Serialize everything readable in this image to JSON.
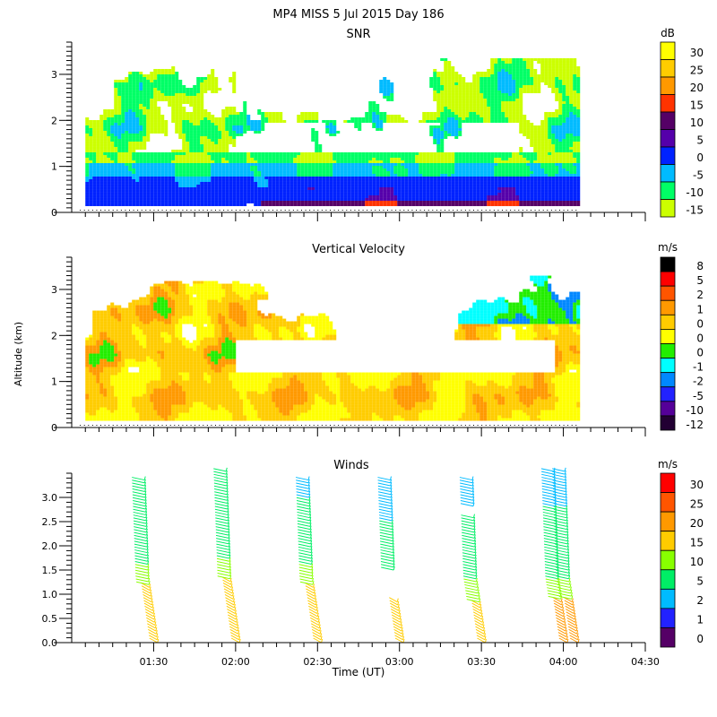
{
  "figure": {
    "title": "MP4 MISS   5 Jul 2015 Day 186",
    "ylabel": "Altitude (km)",
    "xlabel": "Time (UT)"
  },
  "chart_data": [
    {
      "type": "heatmap",
      "title": "SNR",
      "xlabel": "Time (UT)",
      "ylabel": "Altitude (km)",
      "xlim": [
        "01:00",
        "04:30"
      ],
      "ylim": [
        0,
        3.7
      ],
      "y_ticks": [
        "0",
        "1",
        "2",
        "3"
      ],
      "y_tick_values": [
        0,
        1,
        2,
        3
      ],
      "x_ticks": [
        "01:30",
        "02:00",
        "02:30",
        "03:00",
        "03:30",
        "04:00",
        "04:30"
      ],
      "data_time_range": [
        "01:05",
        "04:05"
      ],
      "colorbar": {
        "unit": "dB",
        "labels": [
          "30",
          "25",
          "20",
          "15",
          "10",
          "5",
          "0",
          "-5",
          "-10",
          "-15"
        ],
        "colors": [
          "#ffff00",
          "#ffcc00",
          "#ff9900",
          "#ff3300",
          "#550066",
          "#5500aa",
          "#0022ff",
          "#00bbff",
          "#00ff66",
          "#ccff00"
        ]
      },
      "layers": [
        {
          "alt_range": [
            0.15,
            0.3
          ],
          "value_db": "10 to 15",
          "note": "dark purple near surface, red patches after 03:15"
        },
        {
          "alt_range": [
            0.3,
            0.7
          ],
          "value_db": "0 to 5",
          "note": "blue band"
        },
        {
          "alt_range": [
            0.7,
            1.1
          ],
          "value_db": "-5",
          "note": "light blue band"
        },
        {
          "alt_range": [
            1.1,
            1.6
          ],
          "value_db": "-10 to -15",
          "note": "green/yellow-green"
        },
        {
          "alt_range": [
            1.6,
            3.3
          ],
          "value_db": "-15 to -5",
          "note": "patchy clouds, gap 01:50-03:45 around 1.3-2.0 km"
        }
      ]
    },
    {
      "type": "heatmap",
      "title": "Vertical Velocity",
      "xlabel": "Time (UT)",
      "ylabel": "Altitude (km)",
      "xlim": [
        "01:00",
        "04:30"
      ],
      "ylim": [
        0,
        3.7
      ],
      "y_ticks": [
        "0",
        "1",
        "2",
        "3"
      ],
      "y_tick_values": [
        0,
        1,
        2,
        3
      ],
      "x_ticks": [
        "01:30",
        "02:00",
        "02:30",
        "03:00",
        "03:30",
        "04:00",
        "04:30"
      ],
      "data_time_range": [
        "01:05",
        "04:05"
      ],
      "colorbar": {
        "unit": "m/s",
        "labels": [
          "8",
          "5",
          "2",
          "1",
          "0",
          "0",
          "0",
          "-1",
          "-2",
          "-5",
          "-10",
          "-12"
        ],
        "colors": [
          "#000000",
          "#ff0000",
          "#ff5500",
          "#ff9900",
          "#ffcc00",
          "#ffff00",
          "#22ee00",
          "#00ffff",
          "#0088ff",
          "#2222ff",
          "#550099",
          "#220033"
        ]
      },
      "layers": [
        {
          "alt_range": [
            0.15,
            1.2
          ],
          "value_ms": "0 to 1",
          "note": "mostly yellow/orange"
        },
        {
          "alt_range": [
            1.2,
            3.2
          ],
          "value_ms": "-2 to 1",
          "note": "patchy, green and cyan near top"
        }
      ]
    },
    {
      "type": "scatter",
      "title": "Winds",
      "xlabel": "Time (UT)",
      "ylabel": "Altitude (km)",
      "xlim": [
        "01:00",
        "04:30"
      ],
      "ylim": [
        0,
        3.5
      ],
      "y_ticks": [
        "0.0",
        "0.5",
        "1.0",
        "1.5",
        "2.0",
        "2.5",
        "3.0"
      ],
      "y_tick_values": [
        0,
        0.5,
        1.0,
        1.5,
        2.0,
        2.5,
        3.0
      ],
      "x_ticks": [
        "01:30",
        "02:00",
        "02:30",
        "03:00",
        "03:30",
        "04:00",
        "04:30"
      ],
      "colorbar": {
        "unit": "m/s",
        "labels": [
          "30",
          "25",
          "20",
          "15",
          "10",
          "5",
          "2",
          "1",
          "0"
        ],
        "colors": [
          "#ff0000",
          "#ff5500",
          "#ff9900",
          "#ffcc00",
          "#88ff00",
          "#00ee66",
          "#00bbff",
          "#2222ff",
          "#550066"
        ]
      },
      "profiles": [
        {
          "time": "01:28",
          "top_km": 3.4,
          "speeds": {
            "0-1.2": 15,
            "1.2-1.6": 10,
            "1.6-3.4": 5
          }
        },
        {
          "time": "01:58",
          "top_km": 3.6,
          "speeds": {
            "0-1.3": 15,
            "1.3-1.7": 10,
            "1.7-3.6": 5
          }
        },
        {
          "time": "02:28",
          "top_km": 3.4,
          "speeds": {
            "0-1.2": 15,
            "1.2-1.6": 10,
            "1.6-3.0": 5,
            "3.0-3.4": 2
          }
        },
        {
          "time": "02:58",
          "top_km": 3.4,
          "speeds": {
            "0-0.9": 15,
            "1.5-2.5": 5,
            "2.5-3.4": 2
          }
        },
        {
          "time": "03:28",
          "top_km": 3.4,
          "speeds": {
            "0-0.8": 15,
            "0.8-1.3": 10,
            "1.3-2.6": 5,
            "2.8-3.4": 2
          }
        },
        {
          "time": "03:58",
          "top_km": 3.6,
          "speeds": {
            "0-0.9": 20,
            "0.9-1.3": 10,
            "1.3-2.8": 5,
            "2.8-3.6": 2
          }
        },
        {
          "time": "04:02",
          "top_km": 3.6,
          "speeds": {
            "0-0.9": 20,
            "0.9-1.3": 10,
            "1.3-2.8": 5,
            "2.8-3.6": 2
          }
        }
      ]
    }
  ]
}
